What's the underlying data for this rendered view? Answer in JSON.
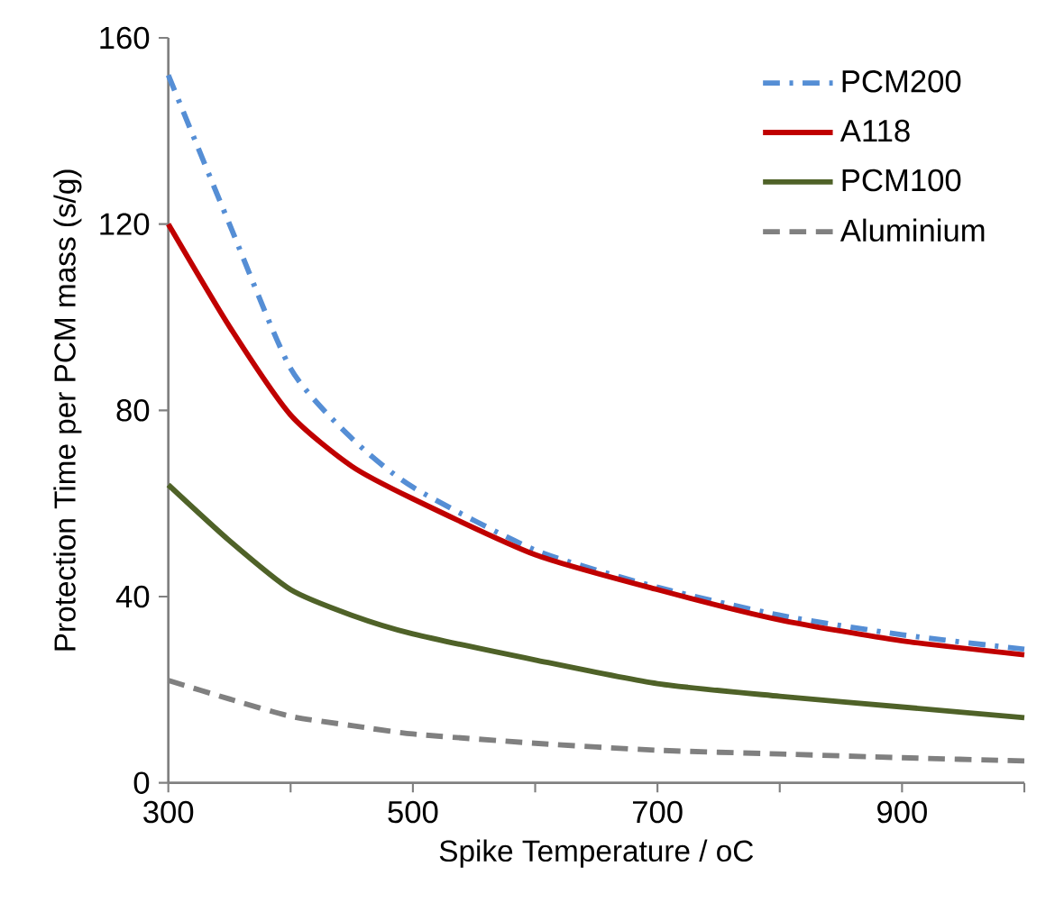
{
  "chart_data": {
    "type": "line",
    "xlabel": "Spike Temperature / oC",
    "ylabel": "Protection Time per PCM mass  (s/g)",
    "x": [
      300,
      350,
      400,
      450,
      500,
      600,
      700,
      800,
      900,
      1000
    ],
    "series": [
      {
        "name": "PCM200",
        "color": "#558ed5",
        "line_style": "dashdot",
        "values": [
          152,
          120,
          89,
          74,
          63.5,
          50,
          42,
          36,
          31.8,
          28.7
        ]
      },
      {
        "name": "A118",
        "color": "#c00000",
        "line_style": "solid",
        "values": [
          120,
          98,
          79,
          68,
          61,
          49,
          41.5,
          35,
          30.5,
          27.5
        ]
      },
      {
        "name": "PCM100",
        "color": "#4f6228",
        "line_style": "solid",
        "values": [
          64,
          52,
          41.5,
          36,
          32,
          26.4,
          21.3,
          18.6,
          16.3,
          14
        ]
      },
      {
        "name": "Aluminium",
        "color": "#808080",
        "line_style": "dashed",
        "values": [
          22,
          18,
          14.3,
          12.3,
          10.5,
          8.5,
          7,
          6.2,
          5.4,
          4.7
        ]
      }
    ],
    "xlim": [
      300,
      1000
    ],
    "ylim": [
      0,
      160
    ],
    "xticks": [
      300,
      {
        "value": 400,
        "label": null
      },
      500,
      {
        "value": 600,
        "label": null
      },
      700,
      {
        "value": 800,
        "label": null
      },
      900,
      {
        "value": 1000,
        "label": null
      }
    ],
    "yticks": [
      0,
      40,
      80,
      120,
      160
    ],
    "legend": "top right",
    "grid": false,
    "marker": "none"
  }
}
